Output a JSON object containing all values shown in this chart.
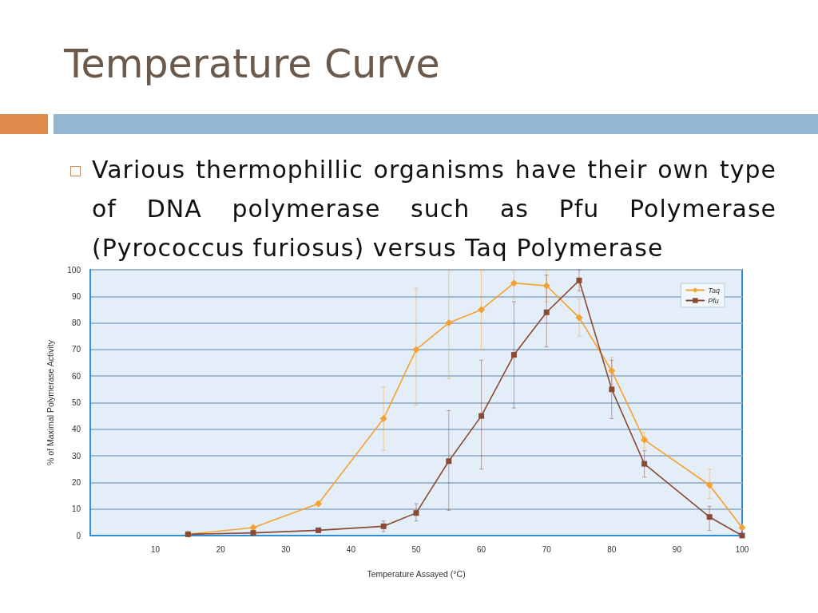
{
  "chart_data": {
    "type": "line",
    "title": "Temperature Curve",
    "subtitle": "Various thermophillic organisms have their own type of DNA polymerase such as Pfu Polymerase (Pyrococcus furiosus) versus Taq Polymerase",
    "xlabel": "Temperature Assayed (°C)",
    "ylabel": "% of Maximal Polymerase Activity",
    "x": [
      15,
      25,
      35,
      45,
      50,
      55,
      60,
      65,
      70,
      75,
      80,
      85,
      95,
      100
    ],
    "series": [
      {
        "name": "Taq",
        "color": "#f5a12f",
        "marker": "diamond",
        "values": [
          0.5,
          3,
          12,
          44,
          70,
          80,
          85,
          95,
          94,
          82,
          62,
          36,
          19,
          3
        ],
        "errors": [
          null,
          null,
          null,
          [
            32,
            56
          ],
          [
            49,
            93
          ],
          [
            59,
            100
          ],
          [
            70,
            100
          ],
          [
            89,
            100
          ],
          [
            88,
            100
          ],
          [
            75,
            89
          ],
          [
            57,
            67
          ],
          [
            33,
            39
          ],
          [
            14,
            25
          ],
          null
        ]
      },
      {
        "name": "Pfu",
        "color": "#8b4a33",
        "marker": "square",
        "values": [
          0.5,
          1,
          2,
          3.5,
          8.5,
          28,
          45,
          68,
          84,
          96,
          55,
          27,
          7,
          0
        ],
        "errors": [
          null,
          null,
          null,
          [
            1.5,
            5.5
          ],
          [
            5.5,
            12
          ],
          [
            9.5,
            47
          ],
          [
            25,
            66
          ],
          [
            48,
            88
          ],
          [
            71,
            98
          ],
          [
            92,
            100
          ],
          [
            44,
            66
          ],
          [
            22,
            32
          ],
          [
            2,
            11
          ],
          null
        ]
      }
    ],
    "xlim": [
      0,
      100
    ],
    "xticks": [
      10,
      20,
      30,
      40,
      50,
      60,
      70,
      80,
      90,
      100
    ],
    "ylim": [
      0,
      100
    ],
    "yticks": [
      0,
      10,
      20,
      30,
      40,
      50,
      60,
      70,
      80,
      90,
      100
    ],
    "grid": "y",
    "legend": "top right",
    "line_style": "solid"
  }
}
